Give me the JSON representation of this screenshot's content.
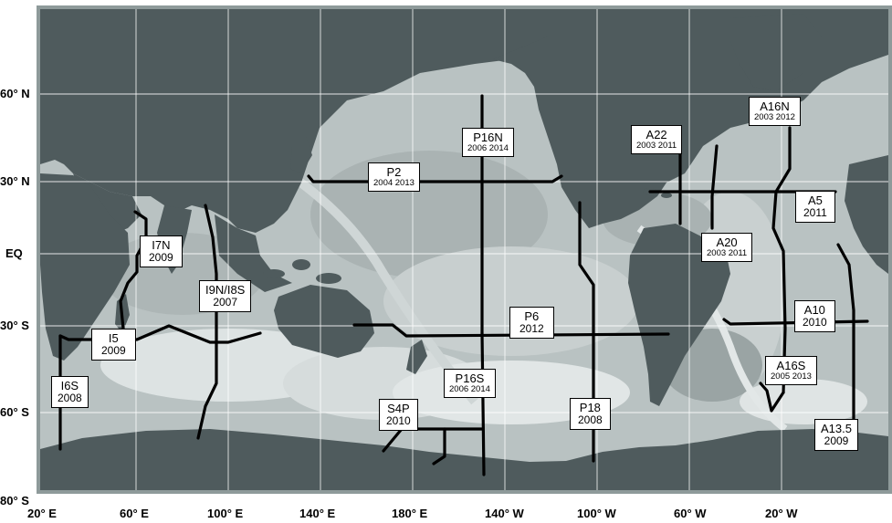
{
  "map": {
    "lat_ticks": [
      "60° N",
      "30° N",
      "EQ",
      "30° S",
      "60° S",
      "80° S"
    ],
    "lon_ticks": [
      "20° E",
      "60° E",
      "100° E",
      "140° E",
      "180° E",
      "140° W",
      "100° W",
      "60° W",
      "20° W"
    ],
    "colors": {
      "land": "#4f5b5d",
      "ocean_base": "#b9c2c2",
      "ocean_shallow": "#dfe4e4",
      "ocean_deep": "#98a2a2",
      "section_line": "#000000",
      "grid": "#ffffff",
      "label_bg": "#ffffff"
    },
    "sections": [
      {
        "id": "P16N",
        "name": "P16N",
        "years": "2006 2014"
      },
      {
        "id": "P2",
        "name": "P2",
        "years": "2004 2013"
      },
      {
        "id": "A22",
        "name": "A22",
        "years": "2003 2011"
      },
      {
        "id": "A16N",
        "name": "A16N",
        "years": "2003 2012"
      },
      {
        "id": "A5",
        "name": "A5",
        "years": "2011"
      },
      {
        "id": "A20",
        "name": "A20",
        "years": "2003 2011"
      },
      {
        "id": "I7N",
        "name": "I7N",
        "years": "2009"
      },
      {
        "id": "I9N",
        "name": "I9N/I8S",
        "years": "2007"
      },
      {
        "id": "P6",
        "name": "P6",
        "years": "2012"
      },
      {
        "id": "A10",
        "name": "A10",
        "years": "2010"
      },
      {
        "id": "I5",
        "name": "I5",
        "years": "2009"
      },
      {
        "id": "A16S",
        "name": "A16S",
        "years": "2005 2013"
      },
      {
        "id": "I6S",
        "name": "I6S",
        "years": "2008"
      },
      {
        "id": "P16S",
        "name": "P16S",
        "years": "2006 2014"
      },
      {
        "id": "S4P",
        "name": "S4P",
        "years": "2010"
      },
      {
        "id": "P18",
        "name": "P18",
        "years": "2008"
      },
      {
        "id": "A135",
        "name": "A13.5",
        "years": "2009"
      }
    ]
  }
}
